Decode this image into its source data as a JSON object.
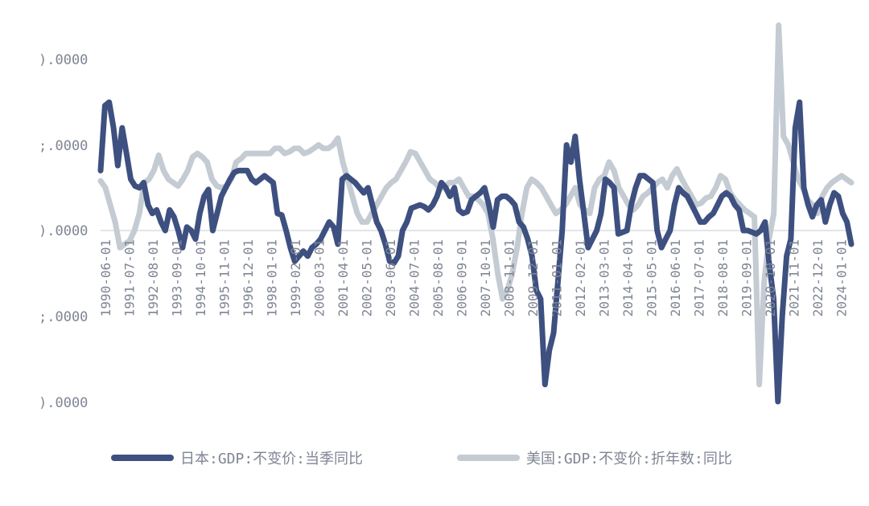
{
  "chart_data": {
    "type": "line",
    "title": "",
    "xlabel": "",
    "ylabel": "",
    "y_ticks": [
      ").0000",
      ";.0000",
      ").0000",
      ";.0000",
      ").0000"
    ],
    "ylim": [
      -10,
      10
    ],
    "x_tick_labels": [
      "1990-06-01",
      "1991-07-01",
      "1992-08-01",
      "1993-09-01",
      "1994-10-01",
      "1995-11-01",
      "1996-12-01",
      "1998-01-01",
      "1999-02-01",
      "2000-03-01",
      "2001-04-01",
      "2002-05-01",
      "2003-06-01",
      "2004-07-01",
      "2005-08-01",
      "2006-09-01",
      "2007-10-01",
      "2008-11-01",
      "2009-12-01",
      "2011-01-01",
      "2012-02-01",
      "2013-03-01",
      "2014-04-01",
      "2015-05-01",
      "2016-06-01",
      "2017-07-01",
      "2018-08-01",
      "2019-09-01",
      "2020-10-01",
      "2021-11-01",
      "2022-12-01",
      "2024-01-01"
    ],
    "x_start": "1990-03",
    "x_end": "2024-06",
    "grid": "zero-line",
    "legend_position": "bottom",
    "series": [
      {
        "name": "日本:GDP:不变价:当季同比",
        "color": "#3d5080",
        "values": [
          3.5,
          7.3,
          7.5,
          6.0,
          3.8,
          6.0,
          4.5,
          3.0,
          2.6,
          2.5,
          2.8,
          1.5,
          1.0,
          1.2,
          0.5,
          0.0,
          1.2,
          0.8,
          0.0,
          -1.0,
          0.2,
          0.0,
          -0.5,
          1.0,
          2.0,
          2.4,
          0.0,
          1.0,
          2.0,
          2.5,
          3.0,
          3.4,
          3.5,
          3.5,
          3.5,
          3.0,
          2.8,
          3.0,
          3.2,
          3.0,
          2.8,
          1.0,
          0.9,
          0.0,
          -1.0,
          -1.8,
          -1.5,
          -1.2,
          -1.5,
          -1.0,
          -0.8,
          -0.5,
          0.0,
          0.5,
          0.2,
          -0.8,
          3.0,
          3.2,
          3.0,
          2.8,
          2.5,
          2.2,
          2.5,
          1.5,
          0.5,
          0.0,
          -0.8,
          -1.8,
          -1.9,
          -1.5,
          0.0,
          0.5,
          1.3,
          1.4,
          1.5,
          1.4,
          1.2,
          1.5,
          2.0,
          2.8,
          2.5,
          2.0,
          2.5,
          1.2,
          1.0,
          1.1,
          1.8,
          2.0,
          2.2,
          2.5,
          1.5,
          0.2,
          1.8,
          2.0,
          2.0,
          1.8,
          1.5,
          0.5,
          0.2,
          -0.5,
          -1.5,
          -3.5,
          -4.0,
          -9.0,
          -7.0,
          -6.0,
          -3.0,
          0.0,
          5.0,
          4.0,
          5.5,
          3.0,
          1.0,
          -1.0,
          -0.5,
          0.0,
          1.0,
          3.0,
          2.8,
          2.5,
          -0.2,
          -0.1,
          0.0,
          1.5,
          2.5,
          3.2,
          3.2,
          3.0,
          2.8,
          0.0,
          -1.0,
          -0.5,
          0.0,
          1.5,
          2.5,
          2.2,
          2.0,
          1.5,
          1.0,
          0.5,
          0.5,
          0.8,
          1.0,
          1.5,
          2.0,
          2.2,
          2.0,
          1.5,
          1.2,
          0.0,
          0.0,
          -0.1,
          -0.2,
          0.0,
          0.5,
          -2.0,
          -4.0,
          -10.0,
          -5.0,
          -1.5,
          -0.5,
          6.0,
          7.5,
          2.5,
          1.5,
          0.8,
          1.5,
          1.8,
          0.5,
          1.5,
          2.2,
          2.0,
          1.0,
          0.5,
          -0.8
        ]
      },
      {
        "name": "美国:GDP:不变价:折年数:同比",
        "color": "#c4cbd3",
        "values": [
          2.9,
          2.5,
          1.5,
          0.5,
          -1.0,
          -0.8,
          -0.6,
          0.0,
          1.0,
          2.8,
          3.0,
          3.5,
          4.4,
          3.5,
          3.0,
          2.8,
          2.6,
          3.0,
          3.5,
          4.3,
          4.5,
          4.3,
          4.0,
          3.0,
          2.6,
          2.5,
          2.6,
          3.0,
          4.0,
          4.2,
          4.5,
          4.5,
          4.5,
          4.5,
          4.5,
          4.5,
          4.8,
          4.8,
          4.5,
          4.6,
          4.8,
          4.8,
          4.5,
          4.6,
          4.8,
          5.0,
          4.8,
          4.8,
          5.0,
          5.4,
          4.0,
          3.0,
          2.0,
          1.0,
          0.5,
          0.5,
          1.0,
          1.5,
          2.0,
          2.5,
          2.8,
          3.0,
          3.5,
          4.0,
          4.6,
          4.5,
          4.0,
          3.5,
          3.0,
          2.8,
          2.5,
          2.5,
          2.8,
          2.8,
          3.0,
          2.5,
          2.0,
          2.0,
          1.8,
          1.5,
          1.0,
          -0.5,
          -2.5,
          -4.0,
          -3.5,
          -2.5,
          -1.0,
          1.0,
          2.5,
          3.0,
          2.8,
          2.5,
          2.0,
          1.5,
          1.0,
          1.2,
          1.5,
          2.0,
          2.5,
          1.5,
          1.2,
          1.0,
          2.5,
          3.0,
          3.2,
          4.0,
          3.5,
          2.5,
          2.0,
          1.5,
          1.2,
          1.5,
          2.0,
          2.2,
          2.5,
          2.8,
          3.0,
          2.5,
          3.2,
          3.6,
          3.0,
          2.5,
          2.0,
          1.5,
          1.6,
          1.9,
          2.0,
          2.5,
          3.2,
          3.0,
          2.2,
          1.8,
          1.5,
          1.2,
          1.0,
          0.8,
          -9.0,
          -3.0,
          -0.5,
          1.0,
          12.0,
          5.5,
          5.0,
          4.0,
          3.0,
          2.5,
          1.8,
          1.5,
          1.0,
          2.0,
          2.5,
          2.8,
          3.0,
          3.2,
          3.0,
          2.8
        ]
      }
    ]
  }
}
